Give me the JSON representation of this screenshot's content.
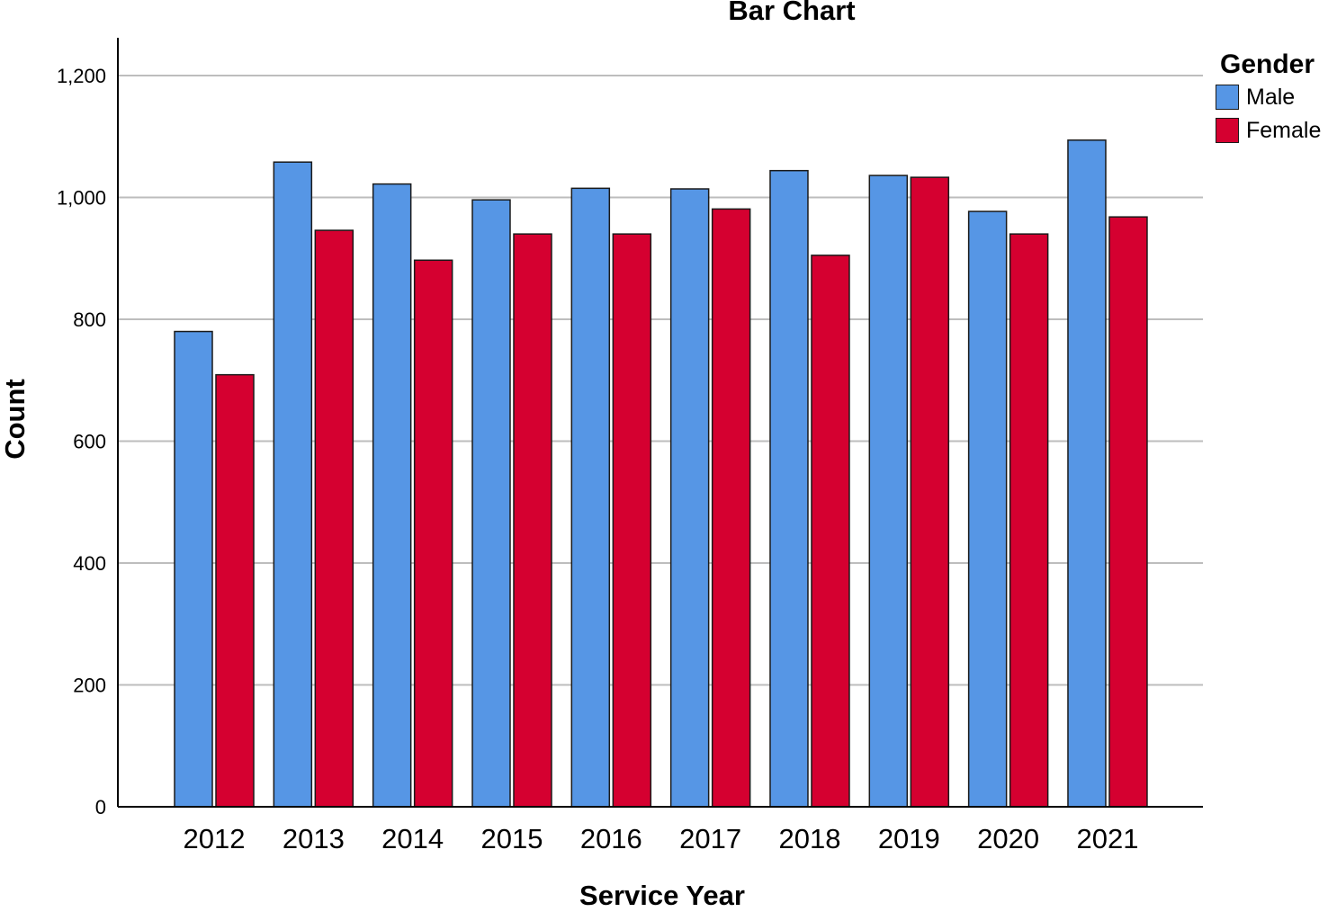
{
  "chart_data": {
    "type": "bar",
    "title": "Bar Chart",
    "xlabel": "Service Year",
    "ylabel": "Count",
    "categories": [
      "2012",
      "2013",
      "2014",
      "2015",
      "2016",
      "2017",
      "2018",
      "2019",
      "2020",
      "2021"
    ],
    "series": [
      {
        "name": "Male",
        "color": "#5696e5",
        "values": [
          780,
          1058,
          1022,
          996,
          1015,
          1014,
          1044,
          1036,
          977,
          1094
        ]
      },
      {
        "name": "Female",
        "color": "#d50030",
        "values": [
          709,
          946,
          897,
          940,
          940,
          981,
          905,
          1033,
          940,
          968
        ]
      }
    ],
    "ylim": [
      0,
      1200
    ],
    "yticks": [
      0,
      200,
      400,
      600,
      800,
      1000,
      1200
    ],
    "ytick_labels": [
      "0",
      "200",
      "400",
      "600",
      "800",
      "1,000",
      "1,200"
    ],
    "grid": true,
    "legend": {
      "title": "Gender",
      "position": "top-right"
    }
  }
}
